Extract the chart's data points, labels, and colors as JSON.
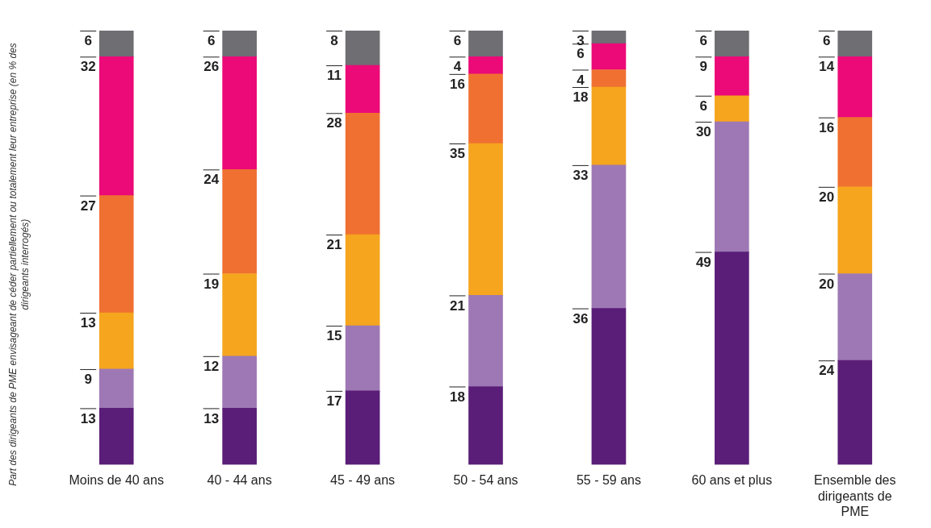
{
  "chart_data": {
    "type": "bar",
    "stacked": true,
    "ylabel": "Part des dirigeants de PME envisageant de céder partiellement ou totalement leur entreprise (en % des dirigeants interrogés)",
    "categories": [
      "Moins de 40 ans",
      "40 - 44 ans",
      "45 - 49 ans",
      "50 - 54 ans",
      "55 - 59 ans",
      "60 ans et plus",
      "Ensemble des dirigeants de PME"
    ],
    "series": [
      {
        "color": "#5a1e78",
        "values": [
          13,
          13,
          17,
          18,
          36,
          49,
          24
        ]
      },
      {
        "color": "#9e78b4",
        "values": [
          9,
          12,
          15,
          21,
          33,
          30,
          20
        ]
      },
      {
        "color": "#f5a51e",
        "values": [
          13,
          19,
          21,
          35,
          18,
          6,
          20
        ]
      },
      {
        "color": "#f07032",
        "values": [
          27,
          24,
          28,
          16,
          4,
          null,
          16
        ]
      },
      {
        "color": "#eb0a78",
        "values": [
          32,
          26,
          11,
          4,
          6,
          9,
          14
        ]
      },
      {
        "color": "#6e6e73",
        "values": [
          6,
          6,
          8,
          6,
          3,
          6,
          6
        ]
      }
    ],
    "data_labels": true,
    "grid": false,
    "legend": false
  }
}
